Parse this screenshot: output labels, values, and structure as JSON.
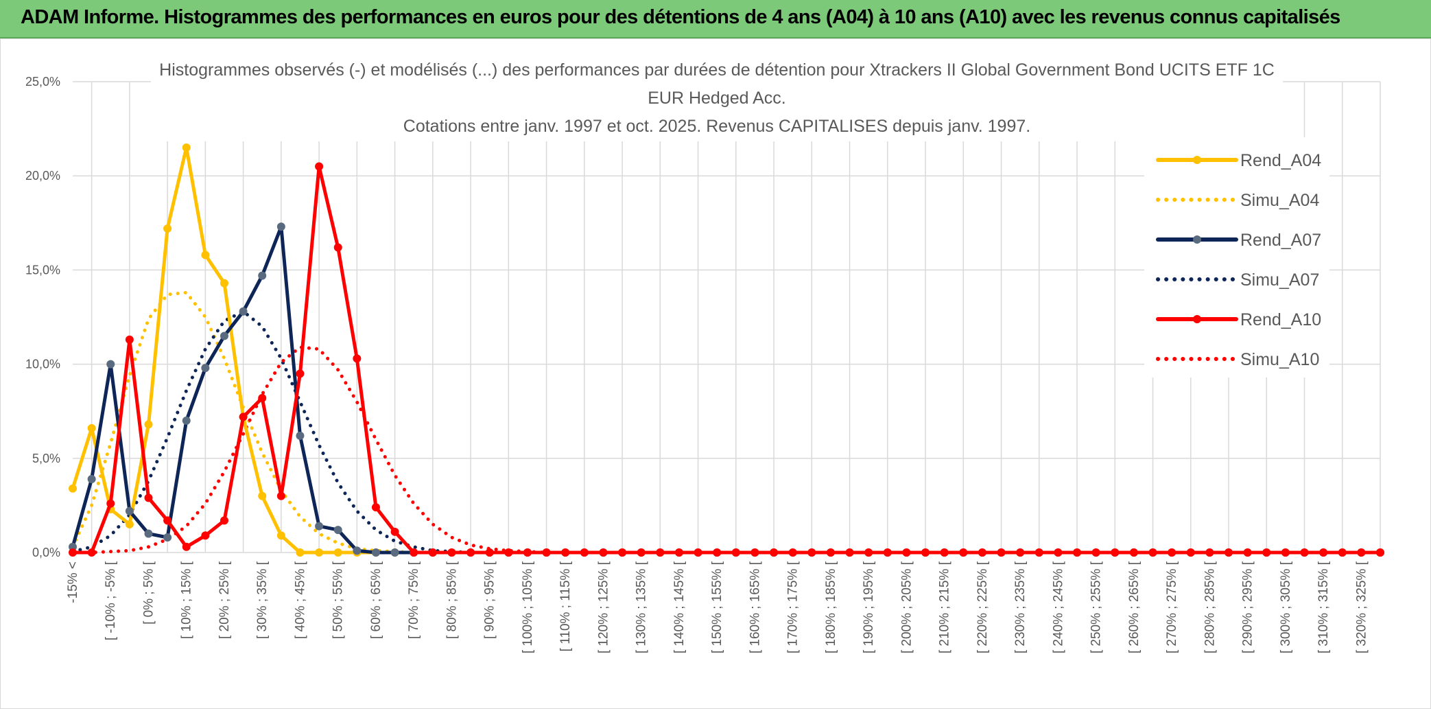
{
  "banner": {
    "title": "ADAM Informe. Histogrammes des performances en euros pour des détentions de 4 ans (A04) à 10 ans (A10) avec les revenus connus capitalisés"
  },
  "colors": {
    "banner_bg": "#7cc97a",
    "A04": "#ffc000",
    "A07": "#0e2557",
    "A07_marker": "#5a6b80",
    "A10": "#ff0000",
    "grid": "#d9d9d9",
    "text": "#595959"
  },
  "chart_data": {
    "type": "line",
    "title_lines": [
      "Histogrammes observés (-) et modélisés (...) des performances par durées de détention pour Xtrackers II Global Government Bond UCITS ETF 1C",
      "EUR Hedged Acc.",
      "Cotations entre janv. 1997 et oct. 2025. Revenus CAPITALISES depuis janv. 1997."
    ],
    "ylim": [
      0,
      25
    ],
    "y_ticks": [
      "0,0%",
      "5,0%",
      "10,0%",
      "15,0%",
      "20,0%",
      "25,0%"
    ],
    "x_labels": [
      "-15% <",
      "[ -10% ; -5% [",
      "[ 0% ; 5% [",
      "[ 10% ; 15% [",
      "[ 20% ; 25% [",
      "[ 30% ; 35% [",
      "[ 40% ; 45% [",
      "[ 50% ; 55% [",
      "[ 60% ; 65% [",
      "[ 70% ; 75% [",
      "[ 80% ; 85% [",
      "[ 90% ; 95% [",
      "[ 100% ; 105% [",
      "[ 110% ; 115% [",
      "[ 120% ; 125% [",
      "[ 130% ; 135% [",
      "[ 140% ; 145% [",
      "[ 150% ; 155% [",
      "[ 160% ; 165% [",
      "[ 170% ; 175% [",
      "[ 180% ; 185% [",
      "[ 190% ; 195% [",
      "[ 200% ; 205% [",
      "[ 210% ; 215% [",
      "[ 220% ; 225% [",
      "[ 230% ; 235% [",
      "[ 240% ; 245% [",
      "[ 250% ; 255% [",
      "[ 260% ; 265% [",
      "[ 270% ; 275% [",
      "[ 280% ; 285% [",
      "[ 290% ; 295% [",
      "[ 300% ; 305% [",
      "[ 310% ; 315% [",
      "[ 320% ; 325% ["
    ],
    "category_count": 70,
    "series": [
      {
        "name": "Rend_A04",
        "color": "#ffc000",
        "style": "solid",
        "marker": true,
        "values": [
          3.4,
          6.6,
          2.3,
          1.5,
          6.8,
          17.2,
          21.5,
          15.8,
          14.3,
          7.2,
          3.0,
          0.9,
          0.0,
          0.0,
          0.0,
          0.0,
          0.0,
          0.0,
          0.0,
          0.0,
          0.0,
          0.0,
          0.0,
          0.0,
          0.0,
          0.0,
          0.0,
          0.0,
          0.0,
          0.0,
          0.0,
          0.0,
          0.0,
          0.0,
          0.0,
          0.0,
          0.0,
          0.0,
          0.0,
          0.0,
          0.0,
          0.0,
          0.0,
          0.0,
          0.0,
          0.0,
          0.0,
          0.0,
          0.0,
          0.0,
          0.0,
          0.0,
          0.0,
          0.0,
          0.0,
          0.0,
          0.0,
          0.0,
          0.0,
          0.0,
          0.0,
          0.0,
          0.0,
          0.0,
          0.0,
          0.0,
          0.0,
          0.0,
          0.0,
          0.0
        ]
      },
      {
        "name": "Simu_A04",
        "color": "#ffc000",
        "style": "dotted",
        "marker": false,
        "values": [
          0.3,
          2.5,
          5.8,
          9.4,
          12.4,
          13.7,
          13.8,
          12.5,
          10.3,
          7.7,
          5.3,
          3.3,
          1.9,
          1.0,
          0.5,
          0.2,
          0.1,
          0.05,
          0.0,
          0.0,
          0.0,
          0.0,
          0.0,
          0.0,
          0.0,
          0.0,
          0.0,
          0.0,
          0.0,
          0.0,
          0.0,
          0.0,
          0.0,
          0.0,
          0.0,
          0.0,
          0.0,
          0.0,
          0.0,
          0.0,
          0.0,
          0.0,
          0.0,
          0.0,
          0.0,
          0.0,
          0.0,
          0.0,
          0.0,
          0.0,
          0.0,
          0.0,
          0.0,
          0.0,
          0.0,
          0.0,
          0.0,
          0.0,
          0.0,
          0.0,
          0.0,
          0.0,
          0.0,
          0.0,
          0.0,
          0.0,
          0.0,
          0.0,
          0.0,
          0.0
        ]
      },
      {
        "name": "Rend_A07",
        "color": "#0e2557",
        "style": "solid",
        "marker": true,
        "values": [
          0.3,
          3.9,
          10.0,
          2.2,
          1.0,
          0.8,
          7.0,
          9.8,
          11.5,
          12.8,
          14.7,
          17.3,
          6.2,
          1.4,
          1.2,
          0.1,
          0.0,
          0.0,
          0.0,
          0.0,
          0.0,
          0.0,
          0.0,
          0.0,
          0.0,
          0.0,
          0.0,
          0.0,
          0.0,
          0.0,
          0.0,
          0.0,
          0.0,
          0.0,
          0.0,
          0.0,
          0.0,
          0.0,
          0.0,
          0.0,
          0.0,
          0.0,
          0.0,
          0.0,
          0.0,
          0.0,
          0.0,
          0.0,
          0.0,
          0.0,
          0.0,
          0.0,
          0.0,
          0.0,
          0.0,
          0.0,
          0.0,
          0.0,
          0.0,
          0.0,
          0.0,
          0.0,
          0.0,
          0.0,
          0.0,
          0.0,
          0.0,
          0.0,
          0.0,
          0.0
        ]
      },
      {
        "name": "Simu_A07",
        "color": "#0e2557",
        "style": "dotted",
        "marker": false,
        "values": [
          0.05,
          0.3,
          0.9,
          2.0,
          3.8,
          6.1,
          8.6,
          10.8,
          12.3,
          12.8,
          12.0,
          10.3,
          8.0,
          5.7,
          3.7,
          2.2,
          1.2,
          0.6,
          0.3,
          0.1,
          0.05,
          0.0,
          0.0,
          0.0,
          0.0,
          0.0,
          0.0,
          0.0,
          0.0,
          0.0,
          0.0,
          0.0,
          0.0,
          0.0,
          0.0,
          0.0,
          0.0,
          0.0,
          0.0,
          0.0,
          0.0,
          0.0,
          0.0,
          0.0,
          0.0,
          0.0,
          0.0,
          0.0,
          0.0,
          0.0,
          0.0,
          0.0,
          0.0,
          0.0,
          0.0,
          0.0,
          0.0,
          0.0,
          0.0,
          0.0,
          0.0,
          0.0,
          0.0,
          0.0,
          0.0,
          0.0,
          0.0,
          0.0,
          0.0,
          0.0
        ]
      },
      {
        "name": "Rend_A10",
        "color": "#ff0000",
        "style": "solid",
        "marker": true,
        "values": [
          0.0,
          0.0,
          2.6,
          11.3,
          2.9,
          1.7,
          0.3,
          0.9,
          1.7,
          7.2,
          8.2,
          3.0,
          9.5,
          20.5,
          16.2,
          10.3,
          2.4,
          1.1,
          0.0,
          0.0,
          0.0,
          0.0,
          0.0,
          0.0,
          0.0,
          0.0,
          0.0,
          0.0,
          0.0,
          0.0,
          0.0,
          0.0,
          0.0,
          0.0,
          0.0,
          0.0,
          0.0,
          0.0,
          0.0,
          0.0,
          0.0,
          0.0,
          0.0,
          0.0,
          0.0,
          0.0,
          0.0,
          0.0,
          0.0,
          0.0,
          0.0,
          0.0,
          0.0,
          0.0,
          0.0,
          0.0,
          0.0,
          0.0,
          0.0,
          0.0,
          0.0,
          0.0,
          0.0,
          0.0,
          0.0,
          0.0,
          0.0,
          0.0,
          0.0,
          0.0
        ]
      },
      {
        "name": "Simu_A10",
        "color": "#ff0000",
        "style": "dotted",
        "marker": false,
        "values": [
          0.0,
          0.0,
          0.05,
          0.1,
          0.3,
          0.7,
          1.4,
          2.6,
          4.3,
          6.3,
          8.4,
          10.1,
          10.9,
          10.8,
          9.7,
          8.0,
          6.0,
          4.1,
          2.6,
          1.5,
          0.8,
          0.4,
          0.2,
          0.1,
          0.05,
          0.0,
          0.0,
          0.0,
          0.0,
          0.0,
          0.0,
          0.0,
          0.0,
          0.0,
          0.0,
          0.0,
          0.0,
          0.0,
          0.0,
          0.0,
          0.0,
          0.0,
          0.0,
          0.0,
          0.0,
          0.0,
          0.0,
          0.0,
          0.0,
          0.0,
          0.0,
          0.0,
          0.0,
          0.0,
          0.0,
          0.0,
          0.0,
          0.0,
          0.0,
          0.0,
          0.0,
          0.0,
          0.0,
          0.0,
          0.0,
          0.0,
          0.0,
          0.0,
          0.0,
          0.0
        ]
      }
    ],
    "legend_position": "right"
  }
}
